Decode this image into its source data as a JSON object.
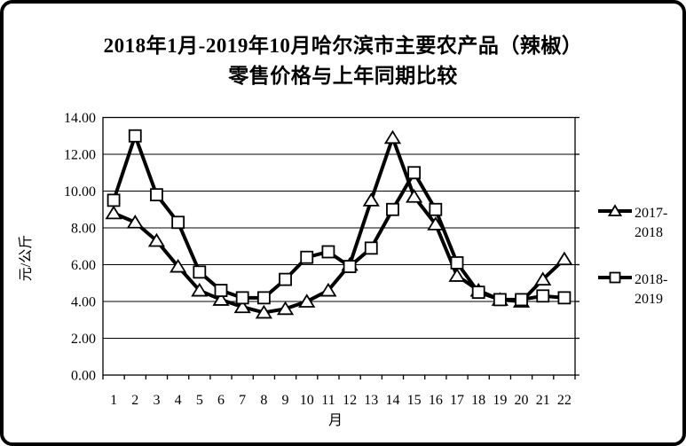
{
  "title": {
    "line1": "2018年1月-2019年10月哈尔滨市主要农产品（辣椒）",
    "line2": "零售价格与上年同期比较"
  },
  "chart_data": {
    "type": "line",
    "categories": [
      "1",
      "2",
      "3",
      "4",
      "5",
      "6",
      "7",
      "8",
      "9",
      "10",
      "11",
      "12",
      "13",
      "14",
      "15",
      "16",
      "17",
      "18",
      "19",
      "20",
      "21",
      "22"
    ],
    "series": [
      {
        "name": "2017-2018",
        "legend_lines": [
          "2017-",
          "2018"
        ],
        "marker": "triangle",
        "values": [
          8.8,
          8.3,
          7.3,
          5.9,
          4.6,
          4.1,
          3.7,
          3.4,
          3.6,
          4.0,
          4.6,
          6.0,
          9.5,
          12.9,
          9.7,
          8.2,
          5.4,
          4.6,
          4.1,
          4.0,
          5.2,
          6.3
        ]
      },
      {
        "name": "2018-2019",
        "legend_lines": [
          "2018-",
          "2019"
        ],
        "marker": "square",
        "values": [
          9.5,
          13.0,
          9.8,
          8.3,
          5.6,
          4.6,
          4.2,
          4.2,
          5.2,
          6.4,
          6.7,
          5.9,
          6.9,
          9.0,
          11.0,
          9.0,
          6.1,
          4.5,
          4.1,
          4.1,
          4.3,
          4.2
        ]
      }
    ],
    "xlabel": "月",
    "ylabel": "元/公斤",
    "ylim": [
      0,
      14
    ],
    "ytick_step": 2,
    "ytick_labels": [
      "0.00",
      "2.00",
      "4.00",
      "6.00",
      "8.00",
      "10.00",
      "12.00",
      "14.00"
    ],
    "grid": true,
    "legend_position": "right",
    "line_color": "#000000",
    "marker_fill": "#ffffff",
    "background": "#ffffff"
  }
}
